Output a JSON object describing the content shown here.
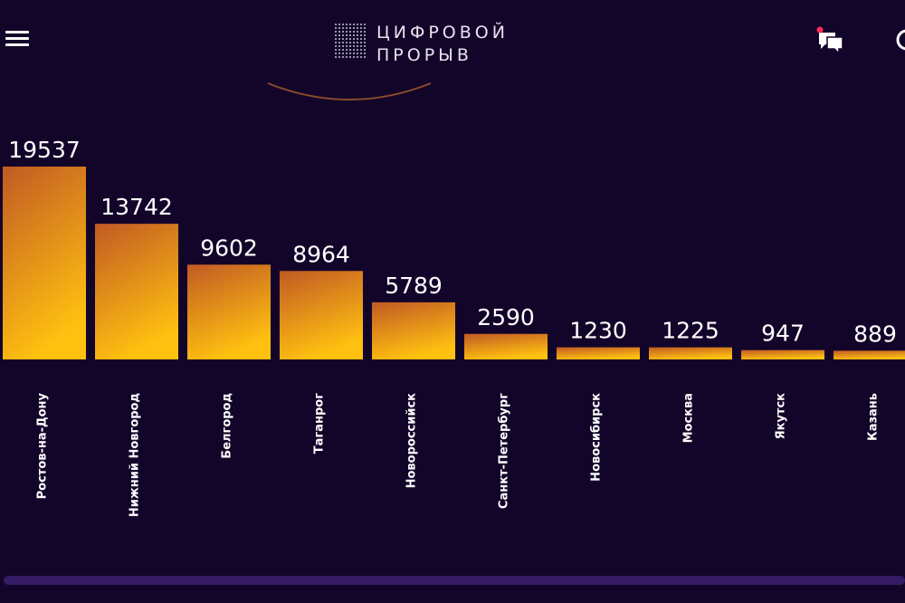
{
  "header": {
    "logo_line1": "ЦИФРОВОЙ",
    "logo_line2": "ПРОРЫВ"
  },
  "colors": {
    "background": "#13052a",
    "bar_top": "#c15a24",
    "bar_bottom": "#ffc010",
    "scrollbar": "#341b63",
    "notification_dot": "#ff2a5a"
  },
  "icons": {
    "menu": "hamburger-icon",
    "chat": "chat-icon",
    "profile": "user-icon"
  },
  "chart_data": {
    "type": "bar",
    "categories": [
      "Ростов-на-Дону",
      "Нижний Новгород",
      "Белгород",
      "Таганрог",
      "Новороссийск",
      "Санкт-Петербург",
      "Новосибирск",
      "Москва",
      "Якутск",
      "Казань"
    ],
    "values": [
      19537,
      13742,
      9602,
      8964,
      5789,
      2590,
      1230,
      1225,
      947,
      889
    ],
    "title": "",
    "xlabel": "",
    "ylabel": "",
    "ylim": [
      0,
      19537
    ],
    "grid": false,
    "legend": "none"
  }
}
